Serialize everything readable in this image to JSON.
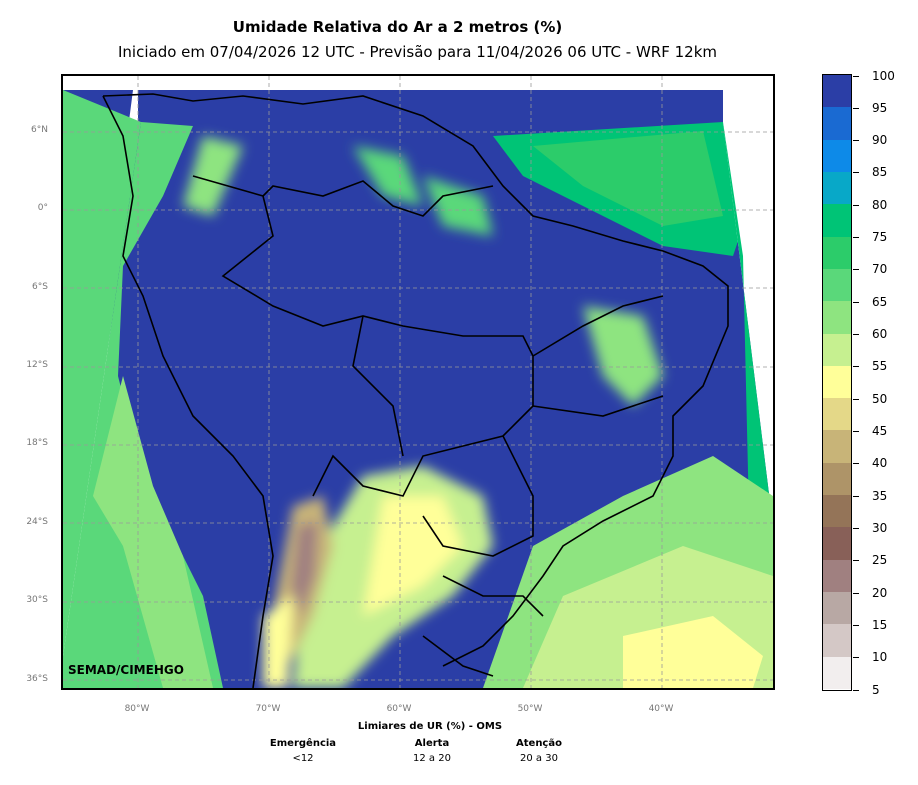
{
  "header": {
    "title": "Umidade Relativa do Ar a 2 metros (%)",
    "subtitle": "Iniciado em 07/04/2026 12 UTC - Previsão para 11/04/2026 06 UTC - WRF 12km"
  },
  "map": {
    "lat_labels": [
      "6°N",
      "0°",
      "6°S",
      "12°S",
      "18°S",
      "24°S",
      "30°S",
      "36°S"
    ],
    "lon_labels": [
      "80°W",
      "70°W",
      "60°W",
      "50°W",
      "40°W"
    ],
    "credit": "SEMAD/CIMEHGO",
    "region": "Brazil and South America",
    "gridlines": true
  },
  "colorbar": {
    "labels": [
      "100",
      "95",
      "90",
      "85",
      "80",
      "75",
      "70",
      "65",
      "60",
      "55",
      "50",
      "45",
      "40",
      "35",
      "30",
      "25",
      "20",
      "15",
      "10",
      "5"
    ],
    "colors": [
      "#2b3ea6",
      "#1a6ad2",
      "#0d8ae8",
      "#08a8c8",
      "#00c476",
      "#2ccc6a",
      "#5ad87a",
      "#8ee480",
      "#c6f090",
      "#ffff99",
      "#e4d888",
      "#c8b478",
      "#ae9468",
      "#947458",
      "#886058",
      "#a08080",
      "#b8a8a4",
      "#d4c8c6",
      "#f2eeee"
    ]
  },
  "thresholds": {
    "title": "Limiares de UR (%) - OMS",
    "levels": [
      {
        "name": "Emergência",
        "value": "<12"
      },
      {
        "name": "Alerta",
        "value": "12 a 20"
      },
      {
        "name": "Atenção",
        "value": "20 a 30"
      }
    ]
  }
}
